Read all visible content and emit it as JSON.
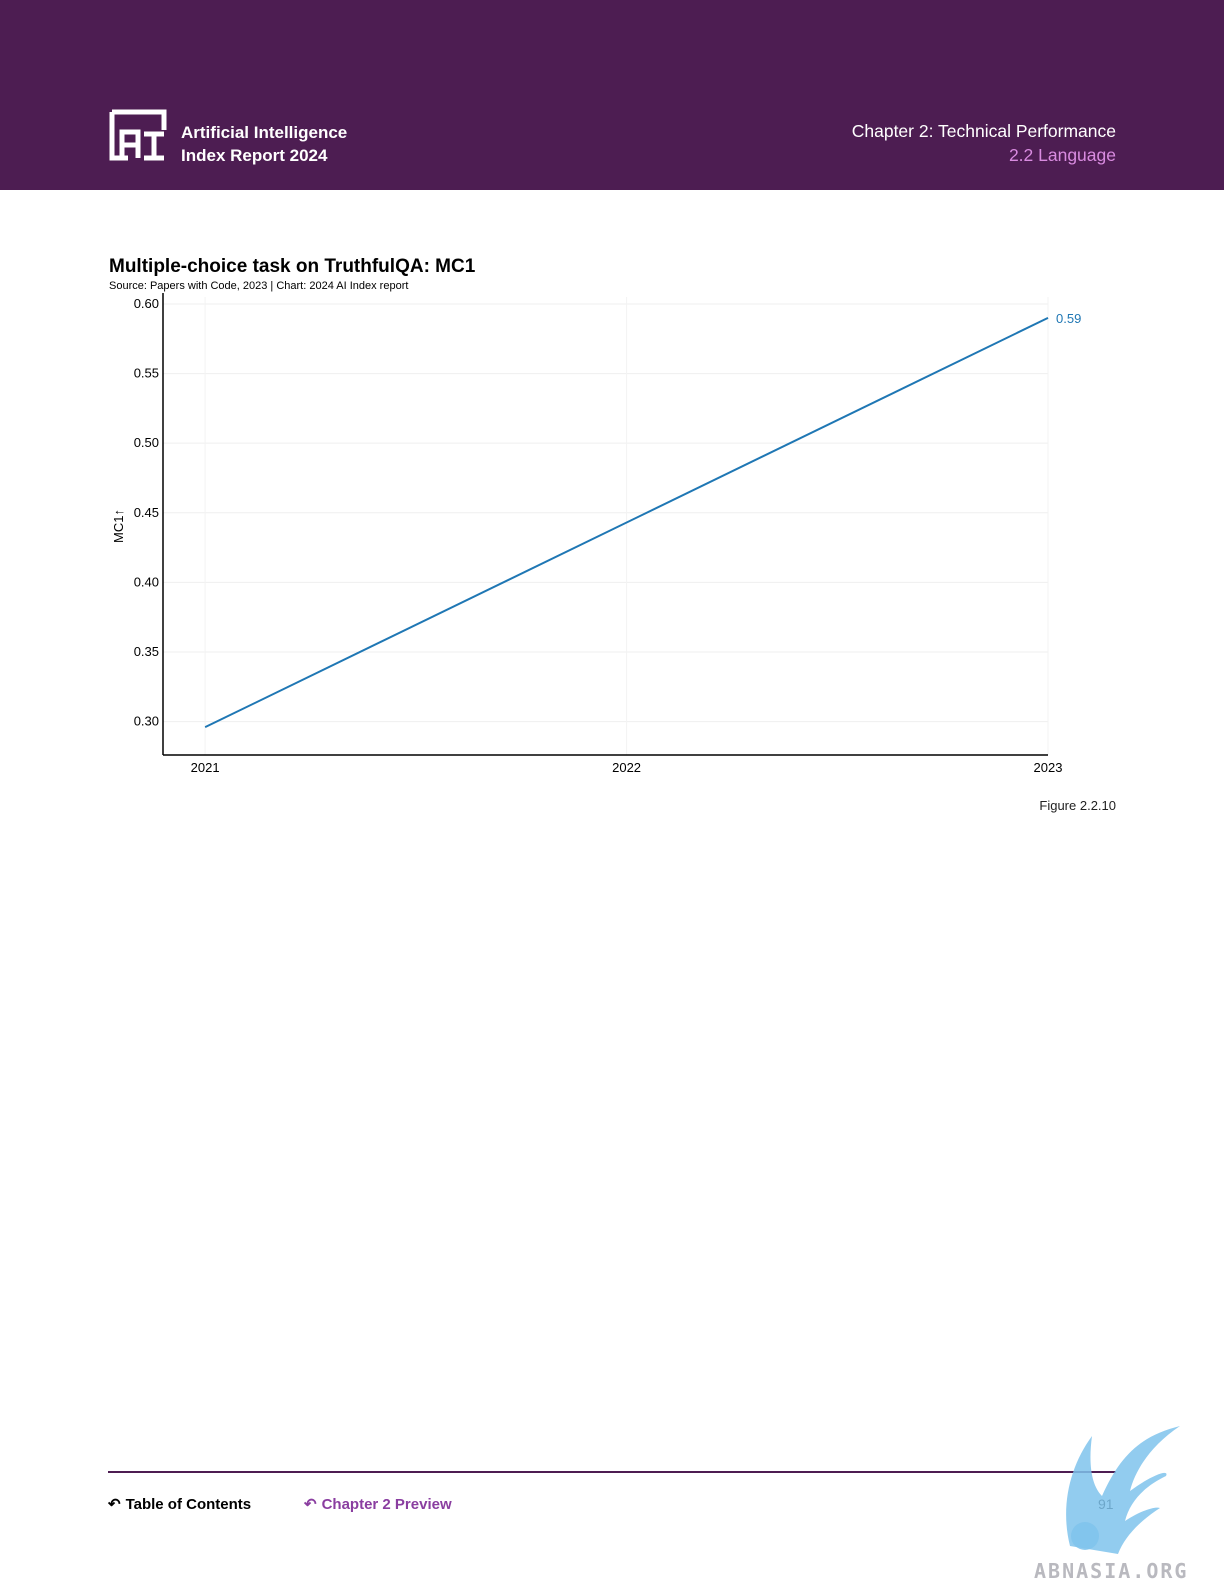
{
  "header": {
    "report_title_line1": "Artificial Intelligence",
    "report_title_line2": "Index Report 2024",
    "chapter_title": "Chapter 2: Technical Performance",
    "section_title": "2.2 Language",
    "logo_icon": "ai-index-logo"
  },
  "colors": {
    "header_bg": "#4d1d52",
    "section_accent": "#d98be0",
    "series_line": "#1f77b4",
    "link_accent": "#8a3ea0"
  },
  "chart_data": {
    "type": "line",
    "title": "Multiple-choice task on TruthfulQA: MC1",
    "subtitle": "Source: Papers with Code, 2023 | Chart: 2024 AI Index report",
    "xlabel": "",
    "ylabel": "MC1",
    "ylabel_arrow": "↑",
    "x": [
      "2021",
      "2022",
      "2023"
    ],
    "x_numeric": [
      2021,
      2022,
      2023
    ],
    "xlim": [
      2020.9,
      2023
    ],
    "ylim": [
      0.276,
      0.605
    ],
    "yticks": [
      0.3,
      0.35,
      0.4,
      0.45,
      0.5,
      0.55,
      0.6
    ],
    "ytick_labels": [
      "0.30",
      "0.35",
      "0.40",
      "0.45",
      "0.50",
      "0.55",
      "0.60"
    ],
    "series": [
      {
        "values": [
          [
            2021,
            0.296
          ],
          [
            2023,
            0.59
          ]
        ],
        "end_label": "0.59"
      }
    ],
    "grid": true
  },
  "figure_label": "Figure 2.2.10",
  "footer": {
    "toc_label": "Table of Contents",
    "preview_label": "Chapter 2 Preview",
    "page_number": "91",
    "arrow_icon": "return-arrow-icon"
  },
  "watermark": {
    "text": "ABNASIA.ORG",
    "icon": "winged-lion-icon"
  }
}
